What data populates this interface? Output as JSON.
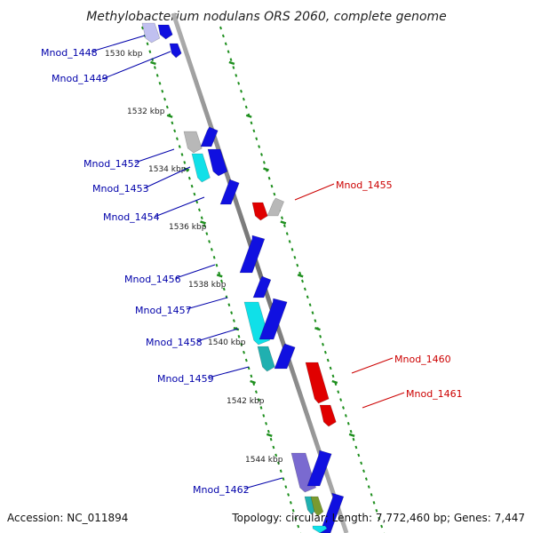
{
  "title": "Methylobacterium nodulans ORS 2060, complete genome",
  "footer": {
    "accession": "Accession: NC_011894",
    "summary": "Topology: circular; Length: 7,772,460 bp; Genes: 7,447"
  },
  "colors": {
    "strand": "#8a8a8a",
    "ticks": "#1e8f1e",
    "label_forward": "#0000aa",
    "label_reverse": "#cc0000",
    "gene_blue": "#1010e0",
    "gene_red": "#e00000",
    "gene_cyan": "#10e0e8",
    "gene_grey": "#b8b8b8",
    "gene_purple": "#7a6ad0",
    "gene_lavender": "#c0c0f0",
    "gene_teal": "#20b0b0",
    "gene_olive": "#7a9a30"
  },
  "scale": {
    "ticks": [
      {
        "label": "1530 kbp"
      },
      {
        "label": "1532 kbp"
      },
      {
        "label": "1534 kbp"
      },
      {
        "label": "1536 kbp"
      },
      {
        "label": "1538 kbp"
      },
      {
        "label": "1540 kbp"
      },
      {
        "label": "1542 kbp"
      },
      {
        "label": "1544 kbp"
      }
    ]
  },
  "gene_labels_left": [
    {
      "name": "Mnod_1448"
    },
    {
      "name": "Mnod_1449"
    },
    {
      "name": "Mnod_1452"
    },
    {
      "name": "Mnod_1453"
    },
    {
      "name": "Mnod_1454"
    },
    {
      "name": "Mnod_1456"
    },
    {
      "name": "Mnod_1457"
    },
    {
      "name": "Mnod_1458"
    },
    {
      "name": "Mnod_1459"
    },
    {
      "name": "Mnod_1462"
    }
  ],
  "gene_labels_right": [
    {
      "name": "Mnod_1455"
    },
    {
      "name": "Mnod_1460"
    },
    {
      "name": "Mnod_1461"
    }
  ]
}
